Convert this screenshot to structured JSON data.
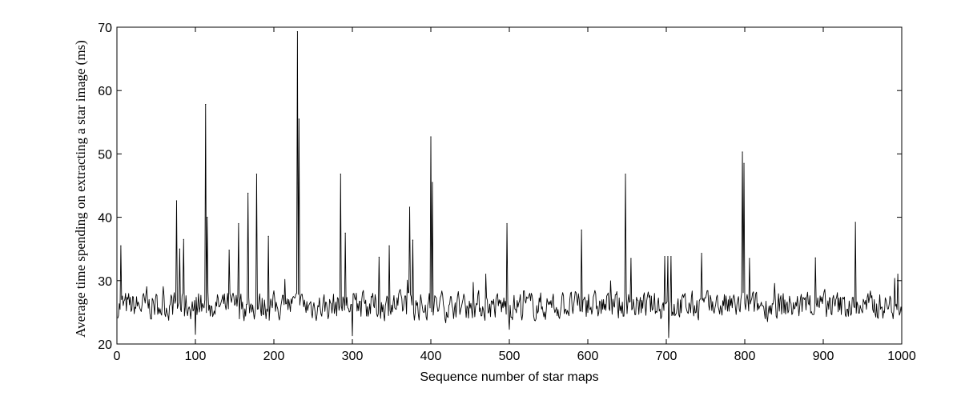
{
  "chart_data": {
    "type": "line",
    "title": "",
    "xlabel": "Sequence number of star maps",
    "ylabel": "Average time spending on extracting a star image (ms)",
    "xlim": [
      0,
      1000
    ],
    "ylim": [
      20,
      70
    ],
    "xticks": [
      0,
      100,
      200,
      300,
      400,
      500,
      600,
      700,
      800,
      900,
      1000
    ],
    "yticks": [
      20,
      30,
      40,
      50,
      60,
      70
    ],
    "grid": false,
    "legend": "none",
    "line_color": "#000000",
    "baseline_range_ms": [
      22.5,
      31
    ],
    "series": [
      {
        "name": "",
        "x_range": [
          1,
          1000
        ],
        "peaks": [
          {
            "x": 5,
            "y": 35.5
          },
          {
            "x": 38,
            "y": 29
          },
          {
            "x": 76,
            "y": 42.6
          },
          {
            "x": 80,
            "y": 35
          },
          {
            "x": 85,
            "y": 36.5
          },
          {
            "x": 113,
            "y": 57.8
          },
          {
            "x": 115,
            "y": 40
          },
          {
            "x": 143,
            "y": 34.8
          },
          {
            "x": 155,
            "y": 39
          },
          {
            "x": 167,
            "y": 43.8
          },
          {
            "x": 178,
            "y": 46.8
          },
          {
            "x": 193,
            "y": 37
          },
          {
            "x": 230,
            "y": 69.3
          },
          {
            "x": 232,
            "y": 55.5
          },
          {
            "x": 285,
            "y": 46.8
          },
          {
            "x": 291,
            "y": 37.5
          },
          {
            "x": 334,
            "y": 33.7
          },
          {
            "x": 347,
            "y": 35.5
          },
          {
            "x": 373,
            "y": 41.6
          },
          {
            "x": 377,
            "y": 36.4
          },
          {
            "x": 400,
            "y": 52.7
          },
          {
            "x": 402,
            "y": 45.5
          },
          {
            "x": 470,
            "y": 31
          },
          {
            "x": 497,
            "y": 39
          },
          {
            "x": 592,
            "y": 38
          },
          {
            "x": 648,
            "y": 46.8
          },
          {
            "x": 655,
            "y": 33.5
          },
          {
            "x": 698,
            "y": 33.8
          },
          {
            "x": 702,
            "y": 33.8
          },
          {
            "x": 706,
            "y": 33.8
          },
          {
            "x": 745,
            "y": 34.3
          },
          {
            "x": 797,
            "y": 50.3
          },
          {
            "x": 799,
            "y": 48.5
          },
          {
            "x": 806,
            "y": 33.5
          },
          {
            "x": 890,
            "y": 33.6
          },
          {
            "x": 941,
            "y": 39.2
          },
          {
            "x": 995,
            "y": 31
          }
        ],
        "dips": [
          {
            "x": 100,
            "y": 21.5
          },
          {
            "x": 300,
            "y": 21.3
          },
          {
            "x": 500,
            "y": 22.3
          },
          {
            "x": 703,
            "y": 21
          }
        ]
      }
    ]
  }
}
